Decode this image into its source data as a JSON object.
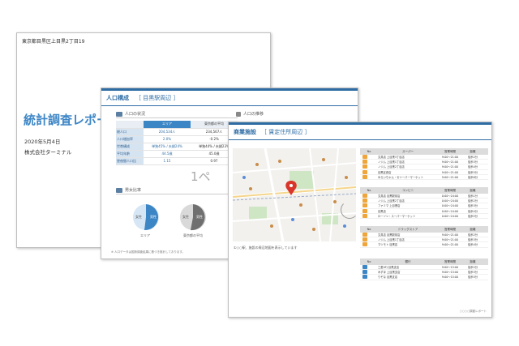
{
  "cover": {
    "address": "東京都目黒区上目黒2丁目19",
    "title": "統計調査レポー",
    "date": "2020年5月4日",
    "company": "株式会社ターミナル"
  },
  "population": {
    "title": "人口構成",
    "area": "［ 目黒駅周辺 ］",
    "section_population": "人口の状況",
    "section_trend": "人口の推移",
    "table": {
      "headers": [
        "",
        "エリア",
        "東京都の平均"
      ],
      "rows": [
        {
          "label": "総人口",
          "area": "204,534人",
          "avg": "234,567人"
        },
        {
          "label": "人口増加率",
          "area": "2.0%",
          "avg": "-0.2%"
        },
        {
          "label": "世帯構成",
          "area": "単独45% / 夫婦24%",
          "avg": "単独44% / 夫婦23%"
        },
        {
          "label": "平均年齢",
          "area": "44.5歳",
          "avg": "45.0歳"
        },
        {
          "label": "昼夜間人口比",
          "area": "1.15",
          "avg": "0.97"
        }
      ]
    },
    "page_number": "1ペ",
    "section_gender": "男女比率",
    "pie1": {
      "label_small": "女性",
      "label_big": "男性",
      "caption": "エリア"
    },
    "pie2": {
      "label_small": "女性",
      "label_big": "男性",
      "caption": "東京都の平均"
    },
    "note": "※ 人口データは国勢調査結果に基づき推計しております。"
  },
  "facilities": {
    "title": "商業施設",
    "area": "［ 賃定住所周辺 ］",
    "map_caption": "①○○駅、施設の周辺地図を表示しています",
    "footer": "○○○○調査レポート",
    "tables": [
      {
        "header": [
          "No",
          "スーパー",
          "営業時間",
          "距離"
        ],
        "color": "#f0a53a",
        "rows": [
          {
            "no": "1",
            "name": "文具店 上目黒3丁目店",
            "hours": "9:00～21:00",
            "dist": "徒歩2分"
          },
          {
            "no": "2",
            "name": "ノジム 上目黒1丁目店",
            "hours": "9:00～21:00",
            "dist": "徒歩3分"
          },
          {
            "no": "3",
            "name": "ノジム 上目黒2丁目店",
            "hours": "9:00～21:00",
            "dist": "徒歩4分"
          },
          {
            "no": "4",
            "name": "目黒区西店",
            "hours": "9:00～21:00",
            "dist": "徒歩5分"
          },
          {
            "no": "5",
            "name": "ゆらいちゃん・セツーパーマーケット",
            "hours": "9:00～21:00",
            "dist": "徒歩6分"
          }
        ]
      },
      {
        "header": [
          "No",
          "コンビニ",
          "営業時間",
          "距離"
        ],
        "color": "#f0a53a",
        "rows": [
          {
            "no": "1",
            "name": "文具店 目黒駅前店",
            "hours": "0:00～24:00",
            "dist": "徒歩1分"
          },
          {
            "no": "2",
            "name": "ノジム 上目黒2丁目店",
            "hours": "0:00～24:00",
            "dist": "徒歩2分"
          },
          {
            "no": "3",
            "name": "ファミマ 上目黒店",
            "hours": "0:00～24:00",
            "dist": "徒歩3分"
          },
          {
            "no": "4",
            "name": "目黒店",
            "hours": "0:00～24:00",
            "dist": "徒歩4分"
          },
          {
            "no": "5",
            "name": "ローソン・スーパーマーケット",
            "hours": "0:00～24:00",
            "dist": "徒歩5分"
          }
        ]
      },
      {
        "header": [
          "No",
          "ドラッグストア",
          "営業時間",
          "距離"
        ],
        "color": "#f0a53a",
        "rows": [
          {
            "no": "1",
            "name": "文具店 目黒駅前店",
            "hours": "9:00～21:00",
            "dist": "徒歩2分"
          },
          {
            "no": "2",
            "name": "ノジム 上目黒1丁目店",
            "hours": "9:00～21:00",
            "dist": "徒歩3分"
          },
          {
            "no": "3",
            "name": "マツモト 目黒店",
            "hours": "9:00～21:00",
            "dist": "徒歩4分"
          }
        ]
      },
      {
        "header": [
          "No",
          "銀行",
          "営業時間",
          "距離"
        ],
        "color": "#3d86c6",
        "rows": [
          {
            "no": "1",
            "name": "三菱UFJ 目黒支店",
            "hours": "9:00～15:00",
            "dist": "徒歩2分"
          },
          {
            "no": "2",
            "name": "みずほ 上目黒支店",
            "hours": "9:00～15:00",
            "dist": "徒歩3分"
          },
          {
            "no": "3",
            "name": "りそな 目黒支店",
            "hours": "9:00～15:00",
            "dist": "徒歩5分"
          }
        ]
      }
    ]
  },
  "colors": {
    "accent": "#3d86c6",
    "header": "#2e6ca4",
    "marker": "#f0a53a",
    "pin": "#d9362b"
  }
}
